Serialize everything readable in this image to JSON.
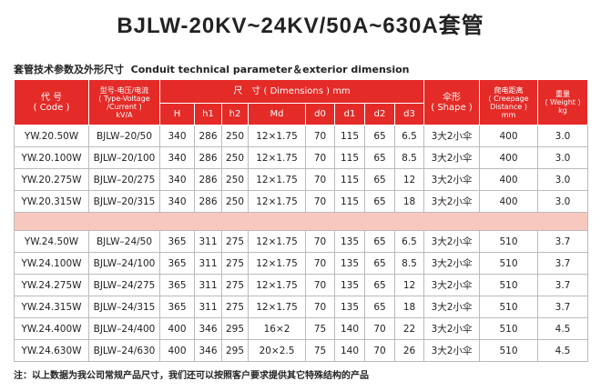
{
  "title": "BJLW-20KV~24KV/50A~630A套管",
  "subtitle": "套管技术参数及外形尺寸  Conduit technical parameter＆exterior dimension",
  "table": {
    "header": {
      "code": [
        "代 号",
        "( Code )"
      ],
      "type": [
        "型号-电压/电流",
        "( Type-Voltage",
        "/Current )",
        "kV/A"
      ],
      "dimensions": "尺　寸 ( Dimensions ) mm",
      "subcolumns": [
        "H",
        "h1",
        "h2",
        "Md",
        "d0",
        "d1",
        "d2",
        "d3"
      ],
      "shape": [
        "伞形",
        "( Shape )"
      ],
      "creepage": [
        "爬电距离",
        "( Creepage",
        "Distance )",
        "mm"
      ],
      "weight": [
        "重量",
        "( Weight )",
        "kg"
      ]
    },
    "groups": [
      [
        [
          "YW.20.50W",
          "BJLW–20/50",
          "340",
          "286",
          "250",
          "12×1.75",
          "70",
          "115",
          "65",
          "6.5",
          "3大2小伞",
          "400",
          "3.0"
        ],
        [
          "YW.20.100W",
          "BJLW–20/100",
          "340",
          "286",
          "250",
          "12×1.75",
          "70",
          "115",
          "65",
          "8.5",
          "3大2小伞",
          "400",
          "3.0"
        ],
        [
          "YW.20.275W",
          "BJLW–20/275",
          "340",
          "286",
          "250",
          "12×1.75",
          "70",
          "115",
          "65",
          "12",
          "3大2小伞",
          "400",
          "3.0"
        ],
        [
          "YW.20.315W",
          "BJLW–20/315",
          "340",
          "286",
          "250",
          "12×1.75",
          "70",
          "115",
          "65",
          "18",
          "3大2小伞",
          "400",
          "3.0"
        ]
      ],
      [
        [
          "YW.24.50W",
          "BJLW–24/50",
          "365",
          "311",
          "275",
          "12×1.75",
          "70",
          "135",
          "65",
          "6.5",
          "3大2小伞",
          "510",
          "3.7"
        ],
        [
          "YW.24.100W",
          "BJLW–24/100",
          "365",
          "311",
          "275",
          "12×1.75",
          "70",
          "135",
          "65",
          "8.5",
          "3大2小伞",
          "510",
          "3.7"
        ],
        [
          "YW.24.275W",
          "BJLW–24/275",
          "365",
          "311",
          "275",
          "12×1.75",
          "70",
          "135",
          "65",
          "12",
          "3大2小伞",
          "510",
          "3.7"
        ],
        [
          "YW.24.315W",
          "BJLW–24/315",
          "365",
          "311",
          "275",
          "12×1.75",
          "70",
          "135",
          "65",
          "18",
          "3大2小伞",
          "510",
          "3.7"
        ],
        [
          "YW.24.400W",
          "BJLW–24/400",
          "400",
          "346",
          "295",
          "16×2",
          "75",
          "140",
          "70",
          "22",
          "3大2小伞",
          "510",
          "4.5"
        ],
        [
          "YW.24.630W",
          "BJLW–24/630",
          "400",
          "346",
          "295",
          "20×2.5",
          "75",
          "140",
          "70",
          "26",
          "3大2小伞",
          "510",
          "4.5"
        ]
      ]
    ]
  },
  "footnote": "注：以上数据为我公司常规产品尺寸，我们还可以按照客户要求提供其它特殊结构的产品"
}
